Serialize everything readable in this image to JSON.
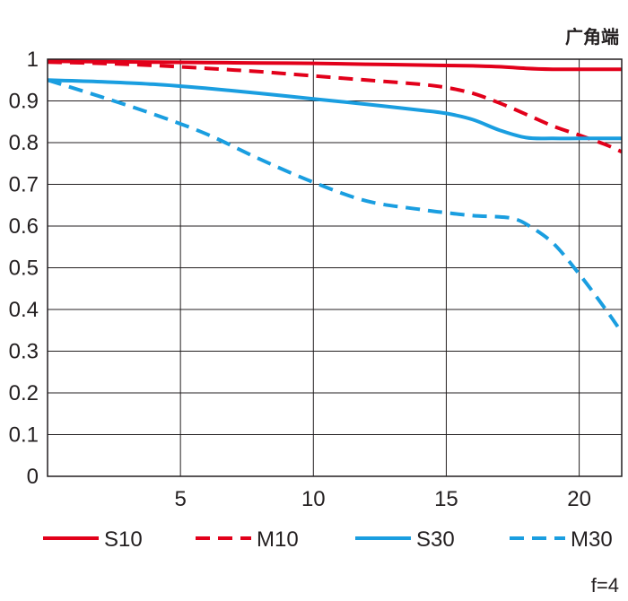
{
  "chart_data": {
    "type": "line",
    "title": "广角端",
    "footnote": "f=4",
    "xlabel": "",
    "ylabel": "",
    "xlim": [
      0,
      21.6
    ],
    "ylim": [
      0,
      1
    ],
    "x_ticks": [
      5,
      10,
      15,
      20
    ],
    "y_ticks": [
      0,
      0.1,
      0.2,
      0.3,
      0.4,
      0.5,
      0.6,
      0.7,
      0.8,
      0.9,
      1
    ],
    "y_tick_labels": [
      "0",
      "0.1",
      "0.2",
      "0.3",
      "0.4",
      "0.5",
      "0.6",
      "0.7",
      "0.8",
      "0.9",
      "1"
    ],
    "grid": true,
    "legend_position": "bottom",
    "series": [
      {
        "name": "S10",
        "color": "#e2001a",
        "dash": "solid",
        "x": [
          0,
          2,
          4,
          6,
          8,
          10,
          12,
          14,
          15,
          16,
          17,
          18,
          19,
          20,
          21,
          21.6
        ],
        "y": [
          0.995,
          0.994,
          0.993,
          0.992,
          0.991,
          0.99,
          0.988,
          0.986,
          0.985,
          0.984,
          0.982,
          0.978,
          0.976,
          0.976,
          0.976,
          0.976
        ]
      },
      {
        "name": "M10",
        "color": "#e2001a",
        "dash": "dashed",
        "x": [
          0,
          2,
          4,
          6,
          8,
          10,
          12,
          14,
          15,
          16,
          17,
          18,
          19,
          20,
          21,
          21.6
        ],
        "y": [
          0.993,
          0.99,
          0.985,
          0.978,
          0.97,
          0.96,
          0.95,
          0.94,
          0.932,
          0.918,
          0.895,
          0.868,
          0.84,
          0.818,
          0.795,
          0.778
        ]
      },
      {
        "name": "S30",
        "color": "#1a9ee0",
        "dash": "solid",
        "x": [
          0,
          2,
          4,
          6,
          8,
          10,
          12,
          14,
          15,
          16,
          17,
          18,
          19,
          20,
          21,
          21.6
        ],
        "y": [
          0.95,
          0.946,
          0.94,
          0.93,
          0.918,
          0.905,
          0.892,
          0.878,
          0.87,
          0.855,
          0.83,
          0.812,
          0.81,
          0.81,
          0.81,
          0.81
        ]
      },
      {
        "name": "M30",
        "color": "#1a9ee0",
        "dash": "dashed",
        "x": [
          0,
          2,
          4,
          6,
          8,
          10,
          12,
          14,
          15,
          16,
          17,
          17.5,
          18,
          19,
          20,
          21,
          21.6
        ],
        "y": [
          0.95,
          0.91,
          0.868,
          0.82,
          0.76,
          0.705,
          0.66,
          0.64,
          0.632,
          0.625,
          0.622,
          0.618,
          0.605,
          0.56,
          0.485,
          0.4,
          0.345
        ]
      }
    ]
  }
}
